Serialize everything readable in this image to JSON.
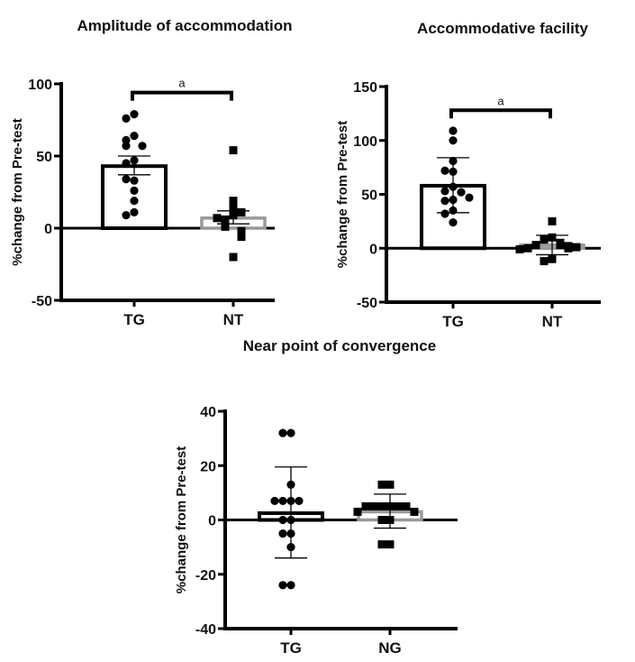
{
  "chart_data": [
    {
      "type": "bar",
      "title": "Amplitude of accommodation",
      "xlabel": "",
      "ylabel": "%change from Pre-test",
      "ylim": [
        -50,
        100
      ],
      "yticks": [
        100,
        50,
        0,
        -50
      ],
      "categories": [
        "TG",
        "NT"
      ],
      "bars": [
        {
          "category": "TG",
          "mean": 43,
          "err_low": 37,
          "err_high": 50,
          "outline": "#000000",
          "marker": "circle",
          "points": [
            79,
            76,
            64,
            61,
            57,
            57,
            47,
            45,
            33,
            34,
            26,
            19,
            11,
            9
          ]
        },
        {
          "category": "NT",
          "mean": 7,
          "err_low": 3,
          "err_high": 12,
          "outline": "#999999",
          "marker": "square",
          "points": [
            54,
            19,
            14,
            9,
            11,
            6,
            7,
            2,
            1,
            -2,
            -4,
            -6,
            -20
          ]
        }
      ],
      "significance": [
        {
          "from": "TG",
          "to": "NT",
          "label": "a",
          "y": 94
        }
      ]
    },
    {
      "type": "bar",
      "title": "Accommodative facility",
      "xlabel": "",
      "ylabel": "%change from Pre-test",
      "ylim": [
        -50,
        150
      ],
      "yticks": [
        150,
        100,
        50,
        0,
        -50
      ],
      "categories": [
        "TG",
        "NT"
      ],
      "bars": [
        {
          "category": "TG",
          "mean": 58,
          "err_low": 33,
          "err_high": 84,
          "outline": "#000000",
          "marker": "circle",
          "points": [
            109,
            100,
            81,
            71,
            72,
            57,
            53,
            52,
            45,
            44,
            47,
            35,
            32,
            24
          ]
        },
        {
          "category": "NT",
          "mean": 3,
          "err_low": -6,
          "err_high": 12,
          "outline": "#999999",
          "marker": "square",
          "points": [
            25,
            10,
            8,
            5,
            3,
            3,
            2,
            0,
            0,
            1,
            -1,
            -10,
            -12
          ]
        }
      ],
      "significance": [
        {
          "from": "TG",
          "to": "NT",
          "label": "a",
          "y": 128
        }
      ]
    },
    {
      "type": "bar",
      "title": "Near point of convergence",
      "xlabel": "",
      "ylabel": "%change from Pre-test",
      "ylim": [
        -40,
        40
      ],
      "yticks": [
        40,
        20,
        0,
        -20,
        -40
      ],
      "categories": [
        "TG",
        "NG"
      ],
      "bars": [
        {
          "category": "TG",
          "mean": 2.5,
          "err_low": -14,
          "err_high": 19.5,
          "outline": "#000000",
          "marker": "circle",
          "points": [
            32,
            32,
            13,
            7,
            7,
            7,
            7,
            0,
            0,
            -5,
            -5,
            -10,
            -24,
            -24
          ]
        },
        {
          "category": "NG",
          "mean": 3,
          "err_low": -3,
          "err_high": 9.5,
          "outline": "#999999",
          "marker": "square",
          "points": [
            13,
            13,
            5,
            5,
            5,
            5,
            5,
            5,
            3,
            3,
            0,
            0,
            -9,
            -9
          ]
        }
      ],
      "significance": []
    }
  ]
}
